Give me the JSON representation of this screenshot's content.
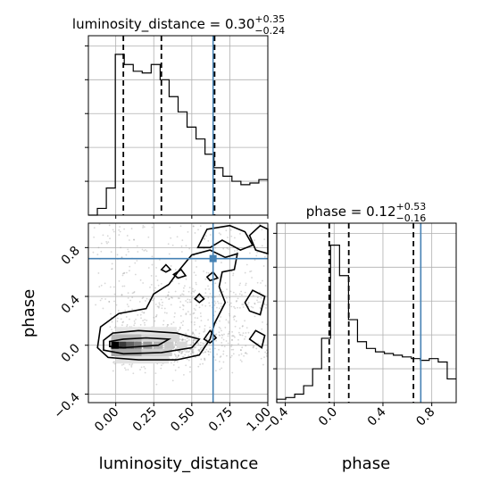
{
  "chart_data": {
    "type": "corner",
    "parameters": [
      "luminosity_distance",
      "phase"
    ],
    "truth": {
      "luminosity_distance": 0.64,
      "phase": 0.71
    },
    "panels": [
      {
        "id": "luminosity_distance_hist",
        "type": "histogram",
        "title": {
          "name": "luminosity_distance",
          "eq": " = 0.30",
          "plus": "+0.35",
          "minus": "−0.24"
        },
        "xlim": [
          -0.18,
          1.0
        ],
        "ylim": [
          0,
          1.06
        ],
        "bin_edges": [
          -0.18,
          -0.121,
          -0.062,
          -0.003,
          0.056,
          0.115,
          0.174,
          0.233,
          0.292,
          0.351,
          0.41,
          0.469,
          0.528,
          0.587,
          0.646,
          0.705,
          0.764,
          0.823,
          0.882,
          0.941,
          1.0
        ],
        "heights": [
          0.0,
          0.04,
          0.16,
          0.95,
          0.89,
          0.85,
          0.84,
          0.89,
          0.8,
          0.7,
          0.61,
          0.52,
          0.45,
          0.36,
          0.28,
          0.23,
          0.2,
          0.18,
          0.19,
          0.21
        ],
        "quantiles": [
          0.05,
          0.3,
          0.65
        ]
      },
      {
        "id": "phase_hist",
        "type": "histogram",
        "title": {
          "name": "phase",
          "eq": " = 0.12",
          "plus": "+0.53",
          "minus": "−0.16"
        },
        "xlim": [
          -0.47,
          1.0
        ],
        "ylim": [
          0,
          1.06
        ],
        "xticks": [
          "−0.4",
          "0.0",
          "0.4",
          "0.8"
        ],
        "xtick_values": [
          -0.4,
          0.0,
          0.4,
          0.8
        ],
        "bin_edges": [
          -0.47,
          -0.3965,
          -0.323,
          -0.2495,
          -0.176,
          -0.1025,
          -0.029,
          0.0445,
          0.118,
          0.1915,
          0.265,
          0.3385,
          0.412,
          0.4855,
          0.559,
          0.6325,
          0.706,
          0.7795,
          0.853,
          0.9265,
          1.0
        ],
        "heights": [
          0.02,
          0.03,
          0.05,
          0.1,
          0.2,
          0.38,
          0.93,
          0.75,
          0.49,
          0.36,
          0.32,
          0.3,
          0.29,
          0.28,
          0.27,
          0.26,
          0.25,
          0.26,
          0.24,
          0.14
        ],
        "quantiles": [
          -0.04,
          0.12,
          0.65
        ]
      },
      {
        "id": "joint",
        "type": "2d-density",
        "xlim": [
          -0.18,
          1.0
        ],
        "ylim": [
          -0.47,
          1.0
        ],
        "xlabel": "luminosity_distance",
        "ylabel": "phase",
        "xticks": [
          "0.00",
          "0.25",
          "0.50",
          "0.75",
          "1.00"
        ],
        "xtick_values": [
          0.0,
          0.25,
          0.5,
          0.75,
          1.0
        ],
        "yticks": [
          "−0.4",
          "0.0",
          "0.4",
          "0.8"
        ],
        "ytick_values": [
          -0.4,
          0.0,
          0.4,
          0.8
        ],
        "density_peak": [
          0.0,
          0.0
        ]
      }
    ],
    "grid": true
  },
  "colors": {
    "truth": "#4682b4",
    "line": "#000000",
    "grid": "#b0b0b0",
    "points": "#8c8c8c"
  }
}
